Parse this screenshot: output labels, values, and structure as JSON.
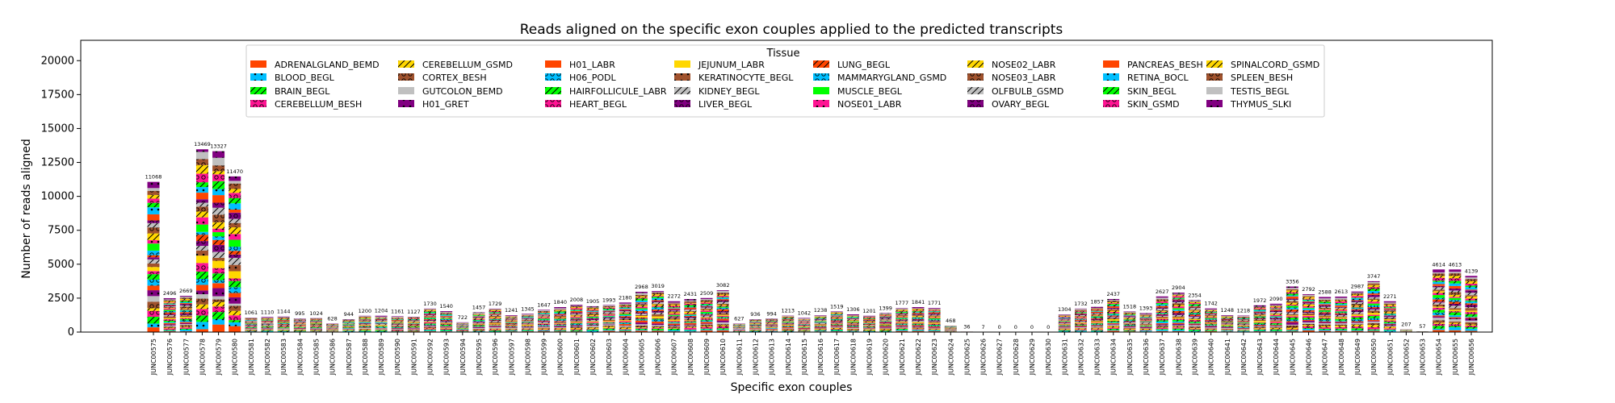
{
  "chart_data": {
    "type": "bar",
    "stacked": true,
    "title": "Reads aligned on the specific exon couples applied to the predicted transcripts",
    "xlabel": "Specific exon couples",
    "ylabel": "Number of reads aligned",
    "ylim": [
      0,
      21500
    ],
    "yticks": [
      0,
      2500,
      5000,
      7500,
      10000,
      12500,
      15000,
      17500,
      20000
    ],
    "ytick_labels": [
      "0",
      "2500",
      "5000",
      "7500",
      "10000",
      "12500",
      "15000",
      "17500",
      "20000"
    ],
    "grid": false,
    "legend_title": "Tissue",
    "legend_placement": "upper-center",
    "categories": [
      "JUNC00575",
      "JUNC00576",
      "JUNC00577",
      "JUNC00578",
      "JUNC00579",
      "JUNC00580",
      "JUNC00581",
      "JUNC00582",
      "JUNC00583",
      "JUNC00584",
      "JUNC00585",
      "JUNC00586",
      "JUNC00587",
      "JUNC00588",
      "JUNC00589",
      "JUNC00590",
      "JUNC00591",
      "JUNC00592",
      "JUNC00593",
      "JUNC00594",
      "JUNC00595",
      "JUNC00596",
      "JUNC00597",
      "JUNC00598",
      "JUNC00599",
      "JUNC00600",
      "JUNC00601",
      "JUNC00602",
      "JUNC00603",
      "JUNC00604",
      "JUNC00605",
      "JUNC00606",
      "JUNC00607",
      "JUNC00608",
      "JUNC00609",
      "JUNC00610",
      "JUNC00611",
      "JUNC00612",
      "JUNC00613",
      "JUNC00614",
      "JUNC00615",
      "JUNC00616",
      "JUNC00617",
      "JUNC00618",
      "JUNC00619",
      "JUNC00620",
      "JUNC00621",
      "JUNC00622",
      "JUNC00623",
      "JUNC00624",
      "JUNC00625",
      "JUNC00626",
      "JUNC00627",
      "JUNC00628",
      "JUNC00629",
      "JUNC00630",
      "JUNC00631",
      "JUNC00632",
      "JUNC00633",
      "JUNC00634",
      "JUNC00635",
      "JUNC00636",
      "JUNC00637",
      "JUNC00638",
      "JUNC00639",
      "JUNC00640",
      "JUNC00641",
      "JUNC00642",
      "JUNC00643",
      "JUNC00644",
      "JUNC00645",
      "JUNC00646",
      "JUNC00647",
      "JUNC00648",
      "JUNC00649",
      "JUNC00650",
      "JUNC00651",
      "JUNC00652",
      "JUNC00653",
      "JUNC00654",
      "JUNC00655",
      "JUNC00656"
    ],
    "totals": [
      11068,
      2496,
      2669,
      13469,
      13327,
      11470,
      1061,
      1110,
      1144,
      995,
      1024,
      628,
      944,
      1200,
      1204,
      1161,
      1127,
      1730,
      1540,
      722,
      1457,
      1729,
      1241,
      1345,
      1647,
      1840,
      2008,
      1905,
      1993,
      2180,
      2968,
      3019,
      2272,
      2431,
      2509,
      3082,
      627,
      936,
      994,
      1213,
      1042,
      1238,
      1519,
      1306,
      1201,
      1399,
      1777,
      1841,
      1771,
      468,
      36,
      7,
      0,
      0,
      0,
      0,
      1304,
      1732,
      1857,
      2437,
      1518,
      1393,
      2627,
      2904,
      2354,
      1742,
      1248,
      1218,
      1972,
      2090,
      3356,
      2792,
      2588,
      2613,
      2987,
      3747,
      2271,
      207,
      57,
      4614,
      4613,
      4139
    ],
    "total_labels": [
      "11068",
      "2496",
      "2669",
      "13469",
      "13327",
      "11470",
      "1061",
      "1110",
      "1144",
      "995",
      "1024",
      "628",
      "944",
      "1200",
      "1204",
      "1161",
      "1127",
      "1730",
      "1540",
      "722",
      "1457",
      "1729",
      "1241",
      "1345",
      "1647",
      "1840",
      "2008",
      "1905",
      "1993",
      "2180",
      "2968",
      "3019",
      "2272",
      "2431",
      "2509",
      "3082",
      "627",
      "936",
      "994",
      "1213",
      "1042",
      "1238",
      "1519",
      "1306",
      "1201",
      "1399",
      "1777",
      "1841",
      "1771",
      "468",
      "36",
      "7",
      "0",
      "0",
      "0",
      "0",
      "1304",
      "1732",
      "1857",
      "2437",
      "1518",
      "1393",
      "2627",
      "2904",
      "2354",
      "1742",
      "1248",
      "1218",
      "1972",
      "2090",
      "3356",
      "2792",
      "2588",
      "2613",
      "2987",
      "3747",
      "2271",
      "207",
      "57",
      "4614",
      "4613",
      "4139"
    ],
    "series": [
      {
        "name": "ADRENALGLAND_BEMD",
        "color": "#ff4500",
        "hatch": "none"
      },
      {
        "name": "BLOOD_BEGL",
        "color": "#00bfff",
        "hatch": "dot"
      },
      {
        "name": "BRAIN_BEGL",
        "color": "#00ff00",
        "hatch": "slash"
      },
      {
        "name": "CEREBELLUM_BESH",
        "color": "#ff1493",
        "hatch": "circle"
      },
      {
        "name": "CEREBELLUM_GSMD",
        "color": "#ffd700",
        "hatch": "slash"
      },
      {
        "name": "CORTEX_BESH",
        "color": "#a0522d",
        "hatch": "circle"
      },
      {
        "name": "GUTCOLON_BEMD",
        "color": "#c0c0c0",
        "hatch": "none"
      },
      {
        "name": "H01_GRET",
        "color": "#800080",
        "hatch": "dot"
      },
      {
        "name": "H01_LABR",
        "color": "#ff4500",
        "hatch": "none"
      },
      {
        "name": "H06_PODL",
        "color": "#00bfff",
        "hatch": "circle"
      },
      {
        "name": "HAIRFOLLICULE_LABR",
        "color": "#00ff00",
        "hatch": "slash"
      },
      {
        "name": "HEART_BEGL",
        "color": "#ff1493",
        "hatch": "circle"
      },
      {
        "name": "JEJUNUM_LABR",
        "color": "#ffd700",
        "hatch": "none"
      },
      {
        "name": "KERATINOCYTE_BEGL",
        "color": "#a0522d",
        "hatch": "dot"
      },
      {
        "name": "KIDNEY_BEGL",
        "color": "#c0c0c0",
        "hatch": "slash"
      },
      {
        "name": "LIVER_BEGL",
        "color": "#800080",
        "hatch": "circle"
      },
      {
        "name": "LUNG_BEGL",
        "color": "#ff4500",
        "hatch": "slash"
      },
      {
        "name": "MAMMARYGLAND_GSMD",
        "color": "#00bfff",
        "hatch": "circle"
      },
      {
        "name": "MUSCLE_BEGL",
        "color": "#00ff00",
        "hatch": "none"
      },
      {
        "name": "NOSE01_LABR",
        "color": "#ff1493",
        "hatch": "dot"
      },
      {
        "name": "NOSE02_LABR",
        "color": "#ffd700",
        "hatch": "slash"
      },
      {
        "name": "NOSE03_LABR",
        "color": "#a0522d",
        "hatch": "circle"
      },
      {
        "name": "OLFBULB_GSMD",
        "color": "#c0c0c0",
        "hatch": "slash"
      },
      {
        "name": "OVARY_BEGL",
        "color": "#800080",
        "hatch": "circle"
      },
      {
        "name": "PANCREAS_BESH",
        "color": "#ff4500",
        "hatch": "none"
      },
      {
        "name": "RETINA_BOCL",
        "color": "#00bfff",
        "hatch": "dot"
      },
      {
        "name": "SKIN_BEGL",
        "color": "#00ff00",
        "hatch": "slash"
      },
      {
        "name": "SKIN_GSMD",
        "color": "#ff1493",
        "hatch": "circle"
      },
      {
        "name": "SPINALCORD_GSMD",
        "color": "#ffd700",
        "hatch": "slash"
      },
      {
        "name": "SPLEEN_BESH",
        "color": "#a0522d",
        "hatch": "circle"
      },
      {
        "name": "TESTIS_BEGL",
        "color": "#c0c0c0",
        "hatch": "none"
      },
      {
        "name": "THYMUS_SLKI",
        "color": "#800080",
        "hatch": "dot"
      }
    ]
  }
}
